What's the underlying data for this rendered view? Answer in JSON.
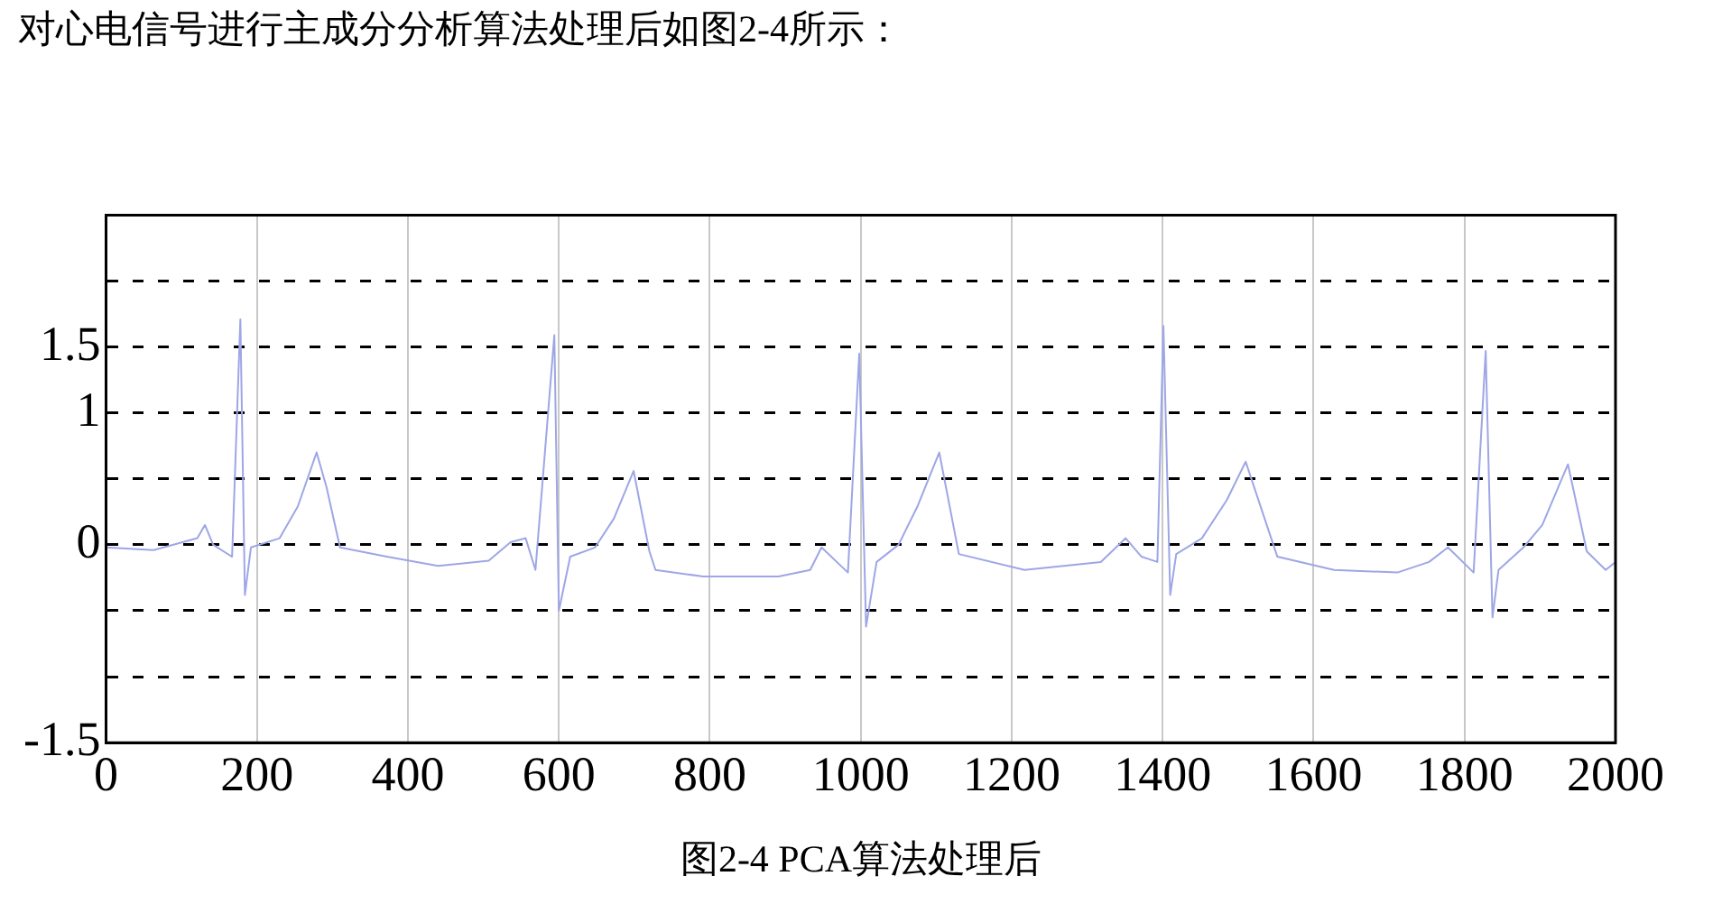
{
  "chart_data": {
    "type": "line",
    "annotations": [
      "对心电信号进行主成分分析算法处理后如图2-4所示：",
      "图2-4 PCA算法处理后"
    ],
    "series": [
      {
        "color": "#9ea6e6",
        "x": [
          0,
          63,
          121,
          131,
          142,
          167,
          178,
          184,
          192,
          230,
          254,
          279,
          292,
          310,
          372,
          440,
          507,
          536,
          556,
          569,
          594,
          600,
          615,
          648,
          673,
          699,
          720,
          728,
          791,
          891,
          933,
          948,
          983,
          998,
          1007,
          1021,
          1050,
          1075,
          1104,
          1130,
          1217,
          1318,
          1351,
          1372,
          1393,
          1401,
          1410,
          1418,
          1452,
          1485,
          1510,
          1535,
          1552,
          1627,
          1711,
          1753,
          1778,
          1812,
          1828,
          1837,
          1845,
          1878,
          1903,
          1937,
          1962,
          1987,
          2000
        ],
        "values": [
          -0.02,
          -0.04,
          0.05,
          0.15,
          0,
          -0.09,
          1.71,
          -0.38,
          -0.02,
          0.05,
          0.29,
          0.7,
          0.44,
          -0.02,
          -0.09,
          -0.16,
          -0.12,
          0.02,
          0.05,
          -0.19,
          1.59,
          -0.5,
          -0.09,
          -0.02,
          0.2,
          0.56,
          -0.05,
          -0.19,
          -0.24,
          -0.24,
          -0.19,
          -0.02,
          -0.21,
          1.45,
          -0.62,
          -0.13,
          0,
          0.29,
          0.7,
          -0.07,
          -0.19,
          -0.13,
          0.05,
          -0.09,
          -0.13,
          1.66,
          -0.38,
          -0.07,
          0.05,
          0.34,
          0.63,
          0.2,
          -0.09,
          -0.19,
          -0.21,
          -0.13,
          -0.02,
          -0.21,
          1.47,
          -0.55,
          -0.19,
          -0.02,
          0.15,
          0.61,
          -0.05,
          -0.19,
          -0.13
        ]
      }
    ],
    "xlim": [
      0,
      2000
    ],
    "xticks": [
      0,
      200,
      400,
      600,
      800,
      1000,
      1200,
      1400,
      1600,
      1800,
      2000
    ],
    "ylim": [
      -1.5,
      2.5
    ],
    "yticks": [
      -1.5,
      {
        "value": -1,
        "label": null
      },
      {
        "value": -0.5,
        "label": null
      },
      0,
      {
        "value": 0.5,
        "label": null
      },
      1.0,
      1.5,
      {
        "value": 2,
        "label": null
      }
    ],
    "grid": true,
    "legend": false,
    "marker": "none",
    "line_style": "solid"
  }
}
